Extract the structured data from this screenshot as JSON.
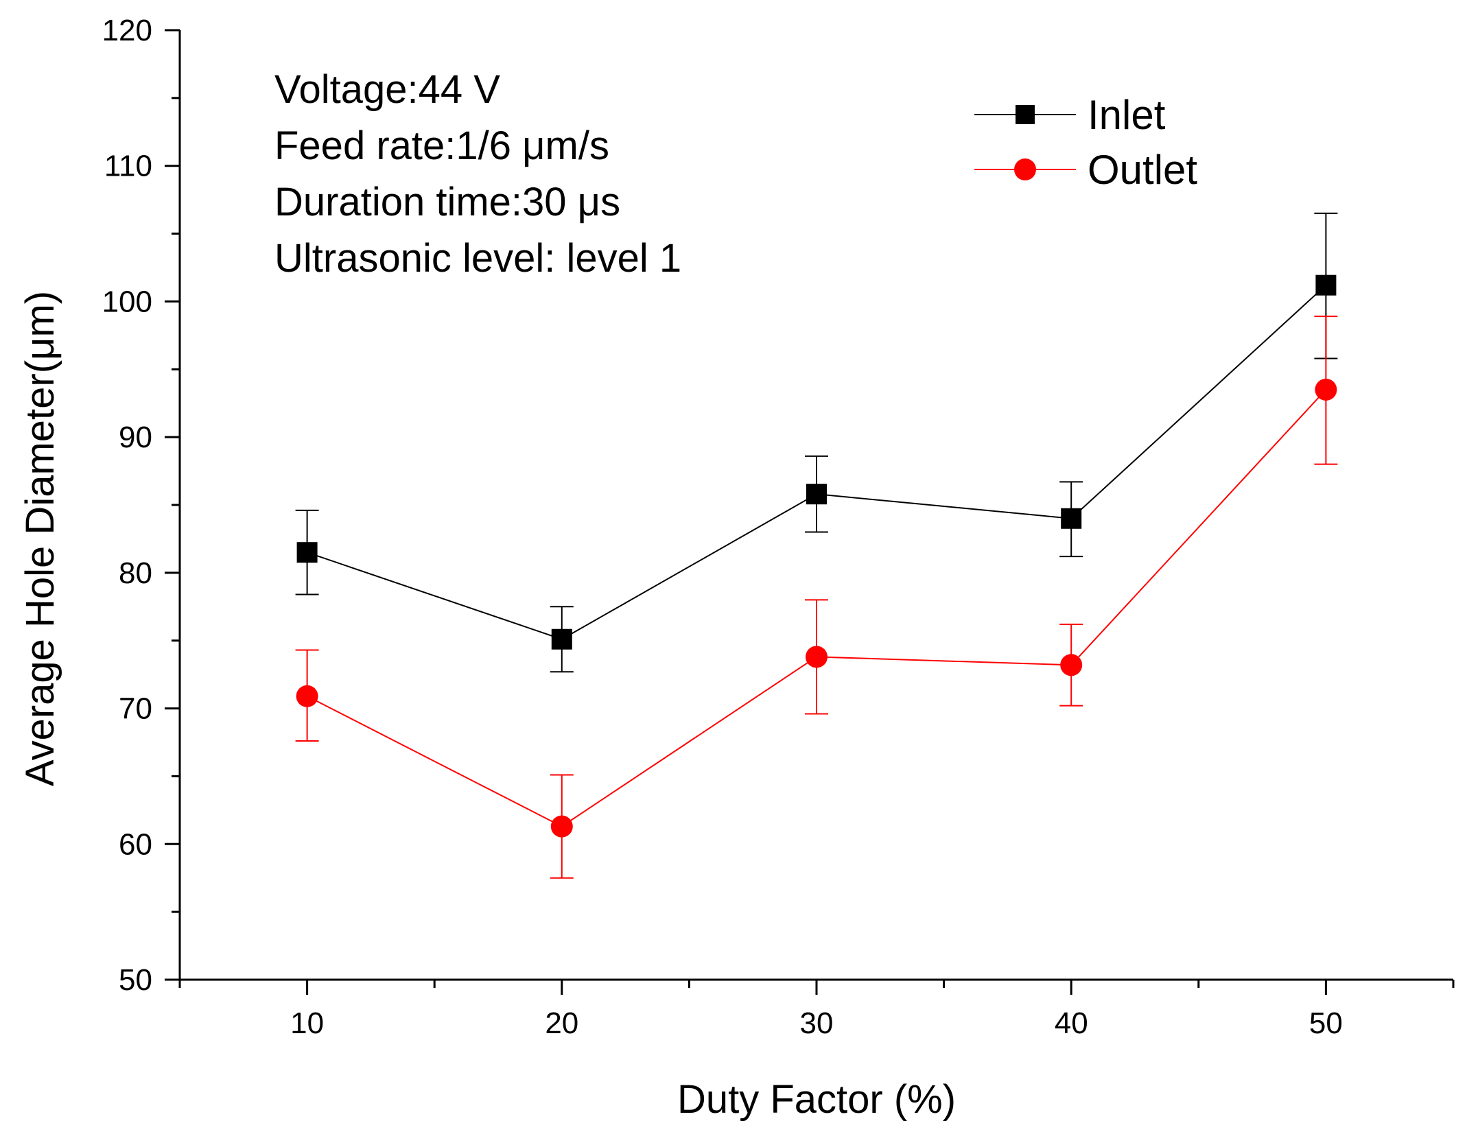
{
  "chart_data": {
    "type": "line",
    "title": "",
    "xlabel": "Duty Factor (%)",
    "ylabel": "Average Hole Diameter(μm)",
    "xlim": [
      5,
      55
    ],
    "ylim": [
      50,
      120
    ],
    "x_ticks": [
      10,
      20,
      30,
      40,
      50
    ],
    "y_ticks": [
      50,
      60,
      70,
      80,
      90,
      100,
      110,
      120
    ],
    "grid": false,
    "legend_position": "top-right",
    "annotations": [
      "Voltage:44 V",
      "Feed rate:1/6 μm/s",
      "Duration time:30 μs",
      "Ultrasonic level: level 1"
    ],
    "x": [
      10,
      20,
      30,
      40,
      50
    ],
    "series": [
      {
        "name": "Inlet",
        "color": "#000000",
        "marker": "square",
        "values": [
          81.5,
          75.1,
          85.8,
          84.0,
          101.2
        ],
        "err_plus": [
          3.1,
          2.4,
          2.8,
          2.7,
          5.3
        ],
        "err_minus": [
          3.1,
          2.4,
          2.8,
          2.8,
          5.4
        ]
      },
      {
        "name": "Outlet",
        "color": "#ff0000",
        "marker": "circle",
        "values": [
          70.9,
          61.3,
          73.8,
          73.2,
          93.5
        ],
        "err_plus": [
          3.4,
          3.8,
          4.2,
          3.0,
          5.4
        ],
        "err_minus": [
          3.3,
          3.8,
          4.2,
          3.0,
          5.5
        ]
      }
    ]
  }
}
